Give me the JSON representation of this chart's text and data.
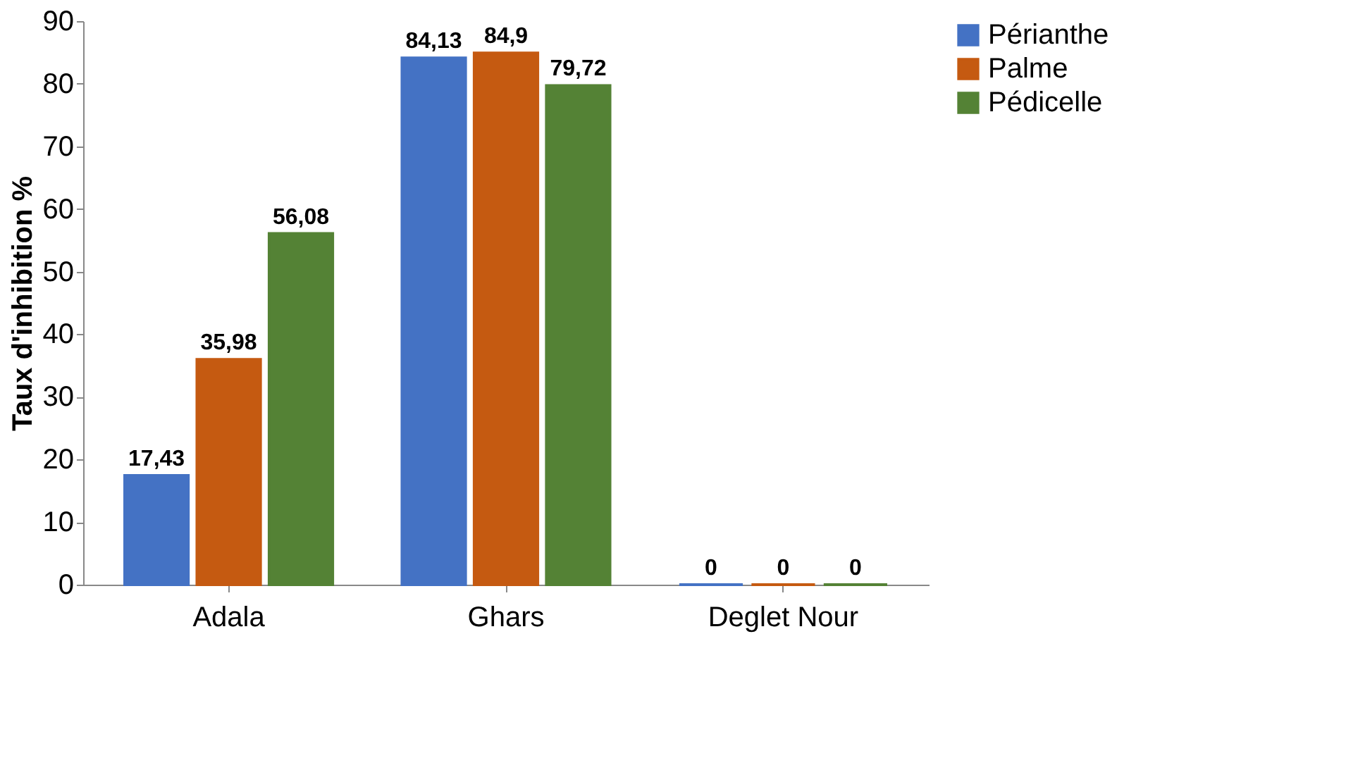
{
  "chart_data": {
    "type": "bar",
    "ylabel": "Taux d'inhibition %",
    "categories": [
      "Adala",
      "Ghars",
      "Deglet Nour"
    ],
    "series": [
      {
        "name": "Périanthe",
        "color": "#4472c4",
        "values": [
          17.43,
          84.13,
          0
        ],
        "value_labels": [
          "17,43",
          "84,13",
          "0"
        ]
      },
      {
        "name": "Palme",
        "color": "#c55a11",
        "values": [
          35.98,
          84.9,
          0
        ],
        "value_labels": [
          "35,98",
          "84,9",
          "0"
        ]
      },
      {
        "name": "Pédicelle",
        "color": "#548235",
        "values": [
          56.08,
          79.72,
          0
        ],
        "value_labels": [
          "56,08",
          "79,72",
          "0"
        ]
      }
    ],
    "ylim": [
      0,
      90
    ],
    "yticks": [
      0,
      10,
      20,
      30,
      40,
      50,
      60,
      70,
      80,
      90
    ],
    "grid": false,
    "legend": "right"
  }
}
